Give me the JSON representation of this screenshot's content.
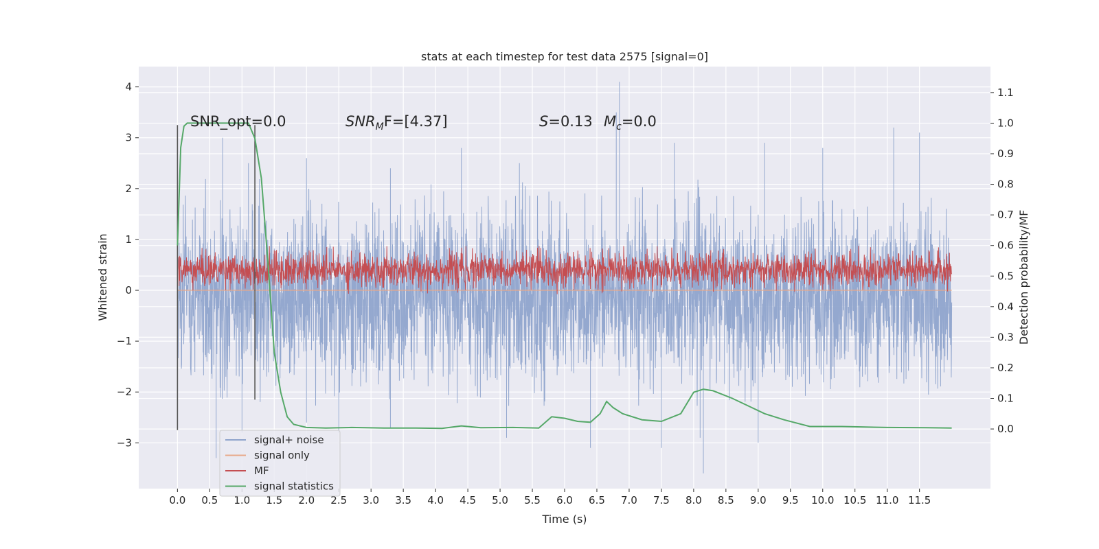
{
  "chart_data": {
    "type": "line",
    "title": "stats at each timestep for test data 2575 [signal=0]",
    "xlabel": "Time (s)",
    "ylabel": "Whitened strain",
    "y2label": "Detection probability/MF",
    "xlim": [
      -0.6,
      12.6
    ],
    "ylim": [
      -3.9,
      4.4
    ],
    "y2lim": [
      -0.195,
      1.185
    ],
    "xticks": [
      0.0,
      0.5,
      1.0,
      1.5,
      2.0,
      2.5,
      3.0,
      3.5,
      4.0,
      4.5,
      5.0,
      5.5,
      6.0,
      6.5,
      7.0,
      7.5,
      8.0,
      8.5,
      9.0,
      9.5,
      10.0,
      10.5,
      11.0,
      11.5
    ],
    "xtick_labels": [
      "0.0",
      "0.5",
      "1.0",
      "1.5",
      "2.0",
      "2.5",
      "3.0",
      "3.5",
      "4.0",
      "4.5",
      "5.0",
      "5.5",
      "6.0",
      "6.5",
      "7.0",
      "7.5",
      "8.0",
      "8.5",
      "9.0",
      "9.5",
      "10.0",
      "10.5",
      "11.0",
      "11.5"
    ],
    "yticks": [
      -3,
      -2,
      -1,
      0,
      1,
      2,
      3,
      4
    ],
    "ytick_labels": [
      "−3",
      "−2",
      "−1",
      "0",
      "1",
      "2",
      "3",
      "4"
    ],
    "y2ticks": [
      0.0,
      0.1,
      0.2,
      0.3,
      0.4,
      0.5,
      0.6,
      0.7,
      0.8,
      0.9,
      1.0,
      1.1
    ],
    "y2tick_labels": [
      "0.0",
      "0.1",
      "0.2",
      "0.3",
      "0.4",
      "0.5",
      "0.6",
      "0.7",
      "0.8",
      "0.9",
      "1.0",
      "1.1"
    ],
    "grid": true,
    "legend_position": "lower-left",
    "series": [
      {
        "name": "signal+ noise",
        "axis": "left",
        "color": "#8fa4cc",
        "description_noise": {
          "x_range": [
            0.0,
            12.0
          ],
          "mean": -0.15,
          "upper_typical": 1.6,
          "lower_typical": -1.7
        },
        "peaks": [
          [
            0.7,
            3.0
          ],
          [
            1.1,
            2.5
          ],
          [
            2.0,
            2.6
          ],
          [
            3.3,
            2.4
          ],
          [
            4.4,
            2.8
          ],
          [
            5.3,
            2.5
          ],
          [
            6.8,
            3.5
          ],
          [
            6.85,
            4.1
          ],
          [
            7.7,
            2.9
          ],
          [
            9.1,
            2.9
          ],
          [
            10.0,
            2.8
          ],
          [
            11.1,
            3.2
          ],
          [
            11.5,
            3.1
          ]
        ],
        "troughs": [
          [
            0.6,
            -3.3
          ],
          [
            1.0,
            -2.8
          ],
          [
            2.0,
            -2.6
          ],
          [
            2.5,
            -2.8
          ],
          [
            3.3,
            -2.7
          ],
          [
            5.1,
            -2.9
          ],
          [
            6.4,
            -3.1
          ],
          [
            7.5,
            -3.1
          ],
          [
            8.1,
            -2.9
          ],
          [
            8.15,
            -3.6
          ],
          [
            9.0,
            -3.0
          ]
        ]
      },
      {
        "name": "signal only",
        "axis": "left",
        "color": "#e8a98a",
        "x": [
          0.0,
          12.0
        ],
        "y": [
          0.0,
          0.0
        ]
      },
      {
        "name": "MF",
        "axis": "right",
        "color": "#c44e52",
        "description_noise": {
          "x_range": [
            0.0,
            12.0
          ],
          "mean": 0.52,
          "upper_typical": 0.59,
          "lower_typical": 0.46,
          "max": 0.6
        }
      },
      {
        "name": "signal statistics",
        "axis": "right",
        "color": "#55a868",
        "x": [
          0.0,
          0.05,
          0.1,
          0.15,
          0.2,
          0.3,
          0.5,
          0.8,
          1.0,
          1.1,
          1.2,
          1.3,
          1.4,
          1.5,
          1.6,
          1.7,
          1.8,
          2.0,
          2.3,
          2.7,
          3.2,
          3.7,
          4.1,
          4.4,
          4.7,
          5.2,
          5.6,
          5.8,
          6.0,
          6.2,
          6.4,
          6.55,
          6.65,
          6.75,
          6.9,
          7.2,
          7.5,
          7.8,
          8.0,
          8.15,
          8.3,
          8.6,
          8.9,
          9.1,
          9.4,
          9.8,
          10.3,
          11.0,
          11.6,
          12.0
        ],
        "y": [
          0.6,
          0.92,
          0.99,
          1.0,
          1.0,
          1.0,
          1.0,
          1.0,
          1.0,
          1.0,
          0.95,
          0.82,
          0.55,
          0.25,
          0.12,
          0.04,
          0.015,
          0.005,
          0.003,
          0.005,
          0.003,
          0.003,
          0.002,
          0.01,
          0.004,
          0.005,
          0.003,
          0.04,
          0.035,
          0.025,
          0.022,
          0.05,
          0.09,
          0.07,
          0.05,
          0.03,
          0.025,
          0.05,
          0.12,
          0.13,
          0.125,
          0.1,
          0.07,
          0.05,
          0.03,
          0.008,
          0.008,
          0.005,
          0.004,
          0.003
        ]
      }
    ],
    "vertical_markers": [
      {
        "x": 0.0,
        "ymin": -2.75,
        "ymax": 3.25,
        "color": "#555555"
      },
      {
        "x": 1.2,
        "ymin": -2.15,
        "ymax": 3.25,
        "color": "#555555"
      }
    ],
    "annotations": [
      {
        "text": "SNR_opt=0.0",
        "x": 0.2,
        "y": 3.3
      },
      {
        "text": "SNRMF=[4.37]",
        "x": 2.6,
        "y": 3.3
      },
      {
        "text": "S=0.13   Mc=0.0",
        "x": 5.6,
        "y": 3.3
      }
    ],
    "annotation_parts": {
      "snr_opt": "SNR_opt=0.0",
      "snr_mf_main": "SNR",
      "snr_mf_sub": "M",
      "snr_mf_rest": "F=[4.37]",
      "s_main": "S",
      "s_rest": "=0.13",
      "mc_main": "M",
      "mc_sub": "c",
      "mc_rest": "=0.0"
    }
  }
}
